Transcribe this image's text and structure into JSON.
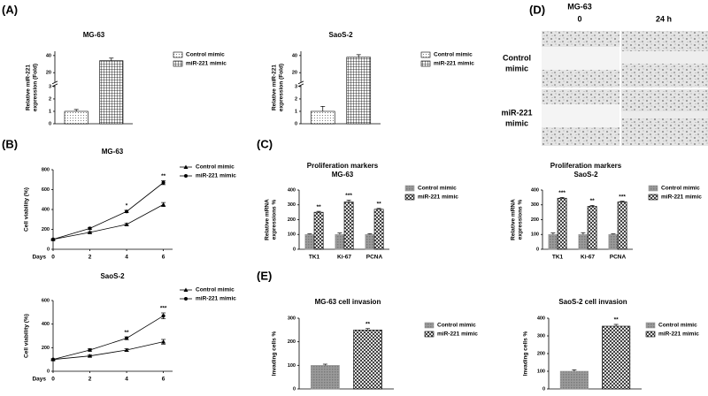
{
  "panel_labels": [
    "(A)",
    "(B)",
    "(C)",
    "(D)",
    "(E)"
  ],
  "wound_image": {
    "title": "MG-63",
    "columns": [
      "0",
      "24 h"
    ],
    "rows": [
      [
        "Control",
        "mimic"
      ],
      [
        "miR-221",
        "mimic"
      ]
    ]
  },
  "chart_data": [
    {
      "type": "bar",
      "title": "MG-63",
      "ylabel": [
        "Relative miR-221",
        "expression (Fold)"
      ],
      "categories": [
        null
      ],
      "series": [
        {
          "name": "Control mimic",
          "pattern": "dots",
          "color": "#000000",
          "values": [
            1
          ],
          "errors": [
            0.15
          ]
        },
        {
          "name": "miR-221 mimic",
          "pattern": "grid",
          "color": "#000000",
          "values": [
            34
          ],
          "errors": [
            3
          ]
        }
      ],
      "ylim": [
        0,
        45
      ],
      "ybreak": [
        3,
        10
      ],
      "yticks": [
        0,
        1,
        2,
        3,
        20,
        40
      ]
    },
    {
      "type": "bar",
      "title": "SaoS-2",
      "ylabel": [
        "Relative miR-221",
        "expression (Fold)"
      ],
      "categories": [
        null
      ],
      "series": [
        {
          "name": "Control mimic",
          "pattern": "dots",
          "color": "#000000",
          "values": [
            1
          ],
          "errors": [
            0.4
          ]
        },
        {
          "name": "miR-221 mimic",
          "pattern": "grid",
          "color": "#000000",
          "values": [
            38
          ],
          "errors": [
            3
          ]
        }
      ],
      "ylim": [
        0,
        45
      ],
      "ybreak": [
        3,
        10
      ],
      "yticks": [
        0,
        1,
        2,
        3,
        20,
        40
      ]
    },
    {
      "type": "line",
      "title": "MG-63",
      "ylabel": [
        "Cell viability (%)"
      ],
      "xlabel": "Days",
      "x": [
        0,
        2,
        4,
        6
      ],
      "series": [
        {
          "name": "Control mimic",
          "marker": "triangle",
          "color": "#000000",
          "values": [
            100,
            170,
            250,
            450
          ],
          "errors": [
            5,
            8,
            10,
            20
          ]
        },
        {
          "name": "miR-221 mimic",
          "marker": "circle",
          "color": "#000000",
          "values": [
            100,
            210,
            380,
            670
          ],
          "errors": [
            5,
            10,
            12,
            20
          ]
        }
      ],
      "annotations": [
        null,
        null,
        "*",
        "**"
      ],
      "xlim": [
        0,
        6.5
      ],
      "xticks": [
        0,
        2,
        4,
        6
      ],
      "ylim": [
        0,
        800
      ],
      "yticks": [
        0,
        200,
        400,
        600,
        800
      ]
    },
    {
      "type": "line",
      "title": "SaoS-2",
      "ylabel": [
        "Cell viability (%)"
      ],
      "xlabel": "Days",
      "x": [
        0,
        2,
        4,
        6
      ],
      "series": [
        {
          "name": "Control mimic",
          "marker": "triangle",
          "color": "#000000",
          "values": [
            100,
            130,
            180,
            250
          ],
          "errors": [
            5,
            8,
            10,
            20
          ]
        },
        {
          "name": "miR-221 mimic",
          "marker": "circle",
          "color": "#000000",
          "values": [
            100,
            180,
            280,
            470
          ],
          "errors": [
            5,
            10,
            12,
            25
          ]
        }
      ],
      "annotations": [
        null,
        null,
        "**",
        "***"
      ],
      "xlim": [
        0,
        6.5
      ],
      "xticks": [
        0,
        2,
        4,
        6
      ],
      "ylim": [
        0,
        600
      ],
      "yticks": [
        0,
        200,
        400,
        600
      ]
    },
    {
      "type": "bar",
      "title": "Proliferation markers",
      "subtitle": "MG-63",
      "ylabel": [
        "Relative mRNA",
        "expressions %"
      ],
      "categories": [
        "TK1",
        "Ki-67",
        "PCNA"
      ],
      "series": [
        {
          "name": "Control mimic",
          "pattern": "gray",
          "color": "#999999",
          "values": [
            100,
            100,
            100
          ],
          "errors": [
            4,
            10,
            5
          ]
        },
        {
          "name": "miR-221 mimic",
          "pattern": "hatch",
          "color": "#000000",
          "values": [
            250,
            320,
            270
          ],
          "errors": [
            6,
            12,
            6
          ]
        }
      ],
      "annotations": [
        "**",
        "***",
        "**"
      ],
      "ylim": [
        0,
        400
      ],
      "yticks": [
        0,
        100,
        200,
        300,
        400
      ]
    },
    {
      "type": "bar",
      "title": "Proliferation markers",
      "subtitle": "SaoS-2",
      "ylabel": [
        "Relative mRNA",
        "expressions %"
      ],
      "categories": [
        "TK1",
        "Ki-67",
        "PCNA"
      ],
      "series": [
        {
          "name": "Control mimic",
          "pattern": "gray",
          "color": "#999999",
          "values": [
            100,
            100,
            100
          ],
          "errors": [
            10,
            12,
            4
          ]
        },
        {
          "name": "miR-221 mimic",
          "pattern": "hatch",
          "color": "#000000",
          "values": [
            345,
            290,
            320
          ],
          "errors": [
            5,
            6,
            5
          ]
        }
      ],
      "annotations": [
        "***",
        "**",
        "***"
      ],
      "ylim": [
        0,
        400
      ],
      "yticks": [
        0,
        100,
        200,
        300,
        400
      ]
    },
    {
      "type": "bar",
      "title": "MG-63 cell invasion",
      "ylabel": [
        "Invading cells %"
      ],
      "categories": [
        null
      ],
      "series": [
        {
          "name": "Control mimic",
          "pattern": "gray",
          "color": "#999999",
          "values": [
            100
          ],
          "errors": [
            5
          ]
        },
        {
          "name": "miR-221 mimic",
          "pattern": "hatch",
          "color": "#000000",
          "values": [
            250
          ],
          "errors": [
            6
          ]
        }
      ],
      "annotations": [
        "**"
      ],
      "ylim": [
        0,
        300
      ],
      "yticks": [
        0,
        100,
        200,
        300
      ]
    },
    {
      "type": "bar",
      "title": "SaoS-2 cell invasion",
      "ylabel": [
        "Invading cells %"
      ],
      "categories": [
        null
      ],
      "series": [
        {
          "name": "Control mimic",
          "pattern": "gray",
          "color": "#999999",
          "values": [
            100
          ],
          "errors": [
            8
          ]
        },
        {
          "name": "miR-221 mimic",
          "pattern": "hatch",
          "color": "#000000",
          "values": [
            355
          ],
          "errors": [
            10
          ]
        }
      ],
      "annotations": [
        "**"
      ],
      "ylim": [
        0,
        400
      ],
      "yticks": [
        0,
        100,
        200,
        300,
        400
      ]
    }
  ]
}
